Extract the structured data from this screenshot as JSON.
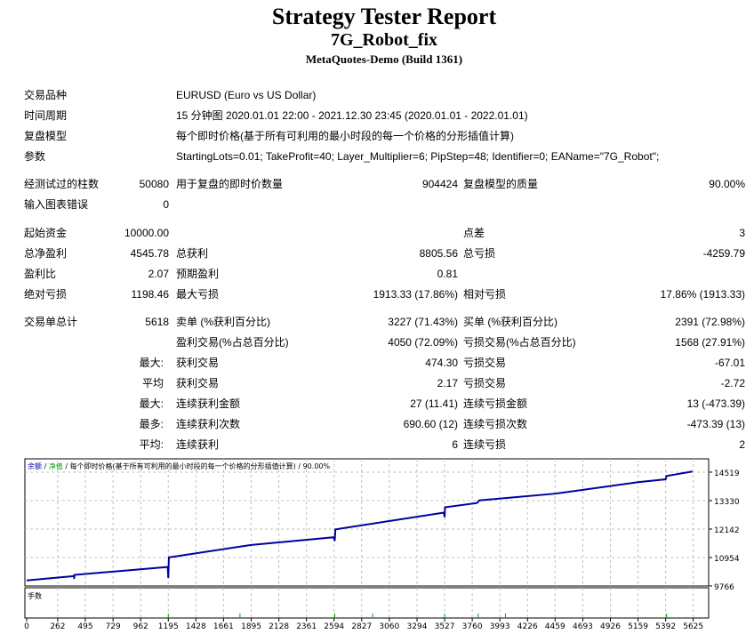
{
  "header": {
    "title": "Strategy Tester Report",
    "expert": "7G_Robot_fix",
    "server": "MetaQuotes-Demo (Build 1361)"
  },
  "info": [
    {
      "label": "交易品种",
      "value": "EURUSD (Euro vs US Dollar)"
    },
    {
      "label": "时间周期",
      "value": "15 分钟图 2020.01.01 22:00 - 2021.12.30 23:45 (2020.01.01 - 2022.01.01)"
    },
    {
      "label": "复盘模型",
      "value": "每个即时价格(基于所有可利用的最小时段的每一个价格的分形插值计算)"
    },
    {
      "label": "参数",
      "value": "StartingLots=0.01; TakeProfit=40; Layer_Multiplier=6; PipStep=48; Identifier=0; EAName=\"7G_Robot\";"
    }
  ],
  "stats": [
    {
      "l1": "经测试过的柱数",
      "v1": "50080",
      "l2": "用于复盘的即时价数量",
      "v2": "904424",
      "l3": "复盘模型的质量",
      "v3": "90.00%"
    },
    {
      "l1": "输入图表错误",
      "v1": "0",
      "l2": "",
      "v2": "",
      "l3": "",
      "v3": ""
    },
    {
      "l1": "起始资金",
      "v1": "10000.00",
      "l2": "",
      "v2": "",
      "l3": "点差",
      "v3": "3"
    },
    {
      "l1": "总净盈利",
      "v1": "4545.78",
      "l2": "总获利",
      "v2": "8805.56",
      "l3": "总亏损",
      "v3": "-4259.79"
    },
    {
      "l1": "盈利比",
      "v1": "2.07",
      "l2": "预期盈利",
      "v2": "0.81",
      "l3": "",
      "v3": ""
    },
    {
      "l1": "绝对亏损",
      "v1": "1198.46",
      "l2": "最大亏损",
      "v2": "1913.33 (17.86%)",
      "l3": "相对亏损",
      "v3": "17.86% (1913.33)"
    },
    {
      "l1": "交易单总计",
      "v1": "5618",
      "l2": "卖单 (%获利百分比)",
      "v2": "3227 (71.43%)",
      "l3": "买单 (%获利百分比)",
      "v3": "2391 (72.98%)"
    },
    {
      "l1": "",
      "v1": "",
      "l2": "盈利交易(%占总百分比)",
      "v2": "4050 (72.09%)",
      "l3": "亏损交易(%占总百分比)",
      "v3": "1568 (27.91%)"
    },
    {
      "l1": "最大:",
      "v1": "",
      "l2": "获利交易",
      "v2": "474.30",
      "l3": "亏损交易",
      "v3": "-67.01"
    },
    {
      "l1": "平均",
      "v1": "",
      "l2": "获利交易",
      "v2": "2.17",
      "l3": "亏损交易",
      "v3": "-2.72"
    },
    {
      "l1": "最大:",
      "v1": "",
      "l2": "连续获利金额",
      "v2": "27 (11.41)",
      "l3": "连续亏损金额",
      "v3": "13 (-473.39)"
    },
    {
      "l1": "最多:",
      "v1": "",
      "l2": "连续获利次数",
      "v2": "690.60 (12)",
      "l3": "连续亏损次数",
      "v3": "-473.39 (13)"
    },
    {
      "l1": "平均:",
      "v1": "",
      "l2": "连续获利",
      "v2": "6",
      "l3": "连续亏损",
      "v3": "2"
    }
  ],
  "chart_data": {
    "type": "line",
    "legend": {
      "balance": "余额",
      "equity": "净值",
      "model": "每个即时价格(基于所有可利用的最小时段的每一个价格的分形插值计算)",
      "quality": "90.00%"
    },
    "lots_label": "手数",
    "colors": {
      "balance": "#0000a0",
      "equity": "#00a000",
      "grid": "#c0c0c0"
    },
    "yticks": [
      14519,
      13330,
      12142,
      10954,
      9766
    ],
    "xticks": [
      0,
      262,
      495,
      729,
      962,
      1195,
      1428,
      1661,
      1895,
      2128,
      2361,
      2594,
      2827,
      3060,
      3294,
      3527,
      3760,
      3993,
      4226,
      4459,
      4693,
      4926,
      5159,
      5392,
      5625
    ],
    "ylim": [
      9766,
      15075
    ],
    "xlim": [
      0,
      5740
    ],
    "balance": [
      [
        0,
        10000
      ],
      [
        400,
        10180
      ],
      [
        401,
        10060
      ],
      [
        402,
        10230
      ],
      [
        1190,
        10560
      ],
      [
        1195,
        10100
      ],
      [
        1200,
        10960
      ],
      [
        1895,
        11480
      ],
      [
        2590,
        11800
      ],
      [
        2600,
        11650
      ],
      [
        2605,
        12130
      ],
      [
        3520,
        12830
      ],
      [
        3527,
        12640
      ],
      [
        3530,
        13050
      ],
      [
        3800,
        13230
      ],
      [
        3820,
        13340
      ],
      [
        4459,
        13620
      ],
      [
        5159,
        14100
      ],
      [
        5392,
        14220
      ],
      [
        5400,
        14360
      ],
      [
        5618,
        14546
      ]
    ],
    "lot_spikes": [
      1195,
      1800,
      2600,
      2920,
      3527,
      3810,
      4040,
      5400
    ]
  }
}
